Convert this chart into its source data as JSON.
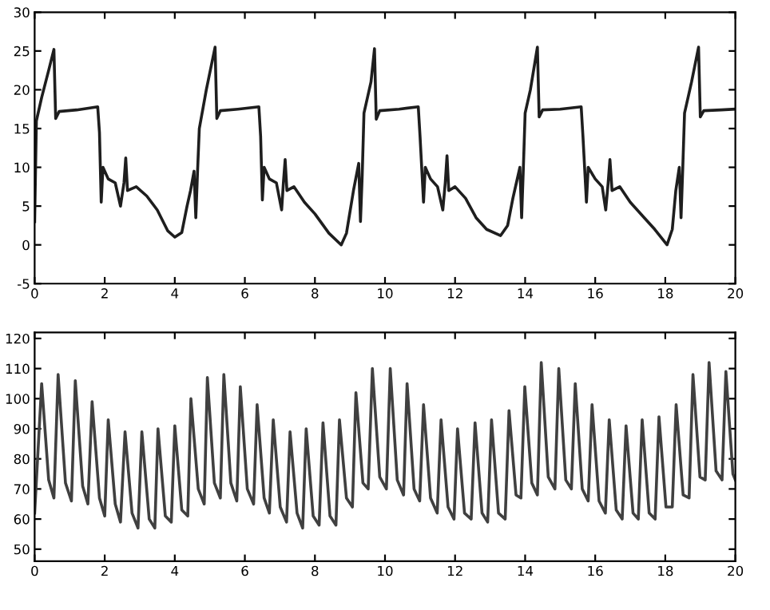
{
  "chart_data": [
    {
      "type": "line",
      "xlim": [
        0,
        20
      ],
      "ylim": [
        -5,
        30
      ],
      "xticks": [
        0,
        2,
        4,
        6,
        8,
        10,
        12,
        14,
        16,
        18,
        20
      ],
      "yticks": [
        -5,
        0,
        5,
        10,
        15,
        20,
        25,
        30
      ],
      "grid": false,
      "x": [
        0,
        0.05,
        0.2,
        0.4,
        0.55,
        0.6,
        0.7,
        1.2,
        1.8,
        1.85,
        1.9,
        1.95,
        2.1,
        2.3,
        2.45,
        2.55,
        2.6,
        2.65,
        2.9,
        3.2,
        3.5,
        3.8,
        4.0,
        4.2,
        4.35,
        4.45,
        4.55,
        4.6,
        4.65,
        4.7,
        4.9,
        5.15,
        5.2,
        5.3,
        5.8,
        6.4,
        6.45,
        6.5,
        6.55,
        6.7,
        6.9,
        7.05,
        7.1,
        7.15,
        7.2,
        7.4,
        7.7,
        8.0,
        8.4,
        8.75,
        8.9,
        9.1,
        9.25,
        9.3,
        9.35,
        9.4,
        9.6,
        9.7,
        9.75,
        9.85,
        10.4,
        10.95,
        11.0,
        11.1,
        11.15,
        11.3,
        11.5,
        11.65,
        11.72,
        11.77,
        11.82,
        12.0,
        12.3,
        12.6,
        12.9,
        13.3,
        13.5,
        13.65,
        13.75,
        13.85,
        13.9,
        13.95,
        14.0,
        14.15,
        14.35,
        14.4,
        14.5,
        15.0,
        15.6,
        15.65,
        15.75,
        15.8,
        16.0,
        16.2,
        16.3,
        16.37,
        16.42,
        16.48,
        16.7,
        17.0,
        17.4,
        17.7,
        18.05,
        18.2,
        18.3,
        18.4,
        18.45,
        18.5,
        18.55,
        18.75,
        18.95,
        19.0,
        19.1,
        19.6,
        20
      ],
      "series": [
        {
          "color": "#1e1e1e",
          "values": [
            3,
            16,
            19,
            22.5,
            25.2,
            16.3,
            17.2,
            17.4,
            17.8,
            14.5,
            5.5,
            10,
            8.5,
            8,
            5,
            8,
            11.2,
            7,
            7.5,
            6.3,
            4.5,
            1.8,
            1,
            1.6,
            5,
            7,
            9.5,
            3.5,
            9.5,
            15,
            20,
            25.5,
            16.3,
            17.3,
            17.5,
            17.8,
            14,
            5.8,
            10,
            8.5,
            8,
            4.5,
            8,
            11,
            7,
            7.5,
            5.5,
            4,
            1.5,
            0,
            1.5,
            7,
            10.5,
            3,
            9,
            17,
            21,
            25.3,
            16.2,
            17.3,
            17.5,
            17.8,
            14,
            5.5,
            10,
            8.5,
            7.5,
            4.5,
            8,
            11.5,
            7,
            7.5,
            6,
            3.5,
            2,
            1.2,
            2.5,
            6,
            8,
            10,
            3.5,
            10,
            17,
            20,
            25.5,
            16.5,
            17.4,
            17.5,
            17.8,
            14,
            5.5,
            10,
            8.5,
            7.5,
            4.5,
            8,
            11,
            7,
            7.5,
            5.5,
            3.5,
            2,
            0,
            2,
            7,
            10,
            3.5,
            10,
            17,
            21,
            25.5,
            16.5,
            17.3,
            17.4,
            17.5
          ]
        }
      ]
    },
    {
      "type": "line",
      "xlim": [
        0,
        20
      ],
      "ylim": [
        46,
        122
      ],
      "xticks": [
        0,
        2,
        4,
        6,
        8,
        10,
        12,
        14,
        16,
        18,
        20
      ],
      "yticks": [
        50,
        60,
        70,
        80,
        90,
        100,
        110,
        120
      ],
      "grid": false,
      "x": [
        0,
        0.2,
        0.4,
        0.55,
        0.67,
        0.88,
        1.05,
        1.16,
        1.37,
        1.52,
        1.64,
        1.85,
        2.0,
        2.1,
        2.3,
        2.45,
        2.58,
        2.78,
        2.95,
        3.06,
        3.27,
        3.43,
        3.52,
        3.73,
        3.9,
        4.0,
        4.2,
        4.37,
        4.46,
        4.67,
        4.84,
        4.93,
        5.13,
        5.3,
        5.4,
        5.6,
        5.77,
        5.87,
        6.07,
        6.25,
        6.35,
        6.55,
        6.7,
        6.81,
        7.01,
        7.19,
        7.29,
        7.49,
        7.65,
        7.75,
        7.95,
        8.12,
        8.23,
        8.43,
        8.6,
        8.7,
        8.9,
        9.07,
        9.17,
        9.37,
        9.52,
        9.64,
        9.85,
        10.04,
        10.15,
        10.35,
        10.53,
        10.63,
        10.83,
        10.99,
        11.1,
        11.3,
        11.49,
        11.6,
        11.8,
        11.97,
        12.07,
        12.27,
        12.46,
        12.57,
        12.77,
        12.93,
        13.04,
        13.24,
        13.43,
        13.54,
        13.74,
        13.88,
        13.99,
        14.19,
        14.35,
        14.46,
        14.66,
        14.85,
        14.96,
        15.16,
        15.32,
        15.43,
        15.63,
        15.8,
        15.91,
        16.11,
        16.29,
        16.4,
        16.6,
        16.77,
        16.88,
        17.08,
        17.23,
        17.34,
        17.54,
        17.71,
        17.82,
        18.02,
        18.2,
        18.31,
        18.51,
        18.68,
        18.79,
        18.99,
        19.14,
        19.25,
        19.45,
        19.62,
        19.73,
        19.93,
        20
      ],
      "series": [
        {
          "color": "#404040",
          "values": [
            62,
            105,
            73,
            67,
            108,
            72,
            66,
            106,
            71,
            65,
            99,
            67,
            61,
            93,
            65,
            59,
            89,
            62,
            57,
            89,
            60,
            57,
            90,
            61,
            59,
            91,
            63,
            61,
            100,
            70,
            65,
            107,
            72,
            67,
            108,
            72,
            66,
            104,
            70,
            65,
            98,
            67,
            62,
            93,
            64,
            59,
            89,
            62,
            57,
            90,
            61,
            58,
            92,
            61,
            58,
            93,
            67,
            64,
            102,
            72,
            70,
            110,
            74,
            70,
            110,
            73,
            68,
            105,
            70,
            66,
            98,
            67,
            62,
            93,
            64,
            60,
            90,
            62,
            60,
            92,
            62,
            59,
            93,
            62,
            60,
            96,
            68,
            67,
            104,
            72,
            68,
            112,
            74,
            70,
            110,
            73,
            70,
            105,
            70,
            66,
            98,
            66,
            62,
            93,
            63,
            60,
            91,
            62,
            60,
            93,
            62,
            60,
            94,
            64,
            64,
            98,
            68,
            67,
            108,
            74,
            73,
            112,
            76,
            73,
            109,
            75,
            73
          ]
        }
      ]
    }
  ]
}
